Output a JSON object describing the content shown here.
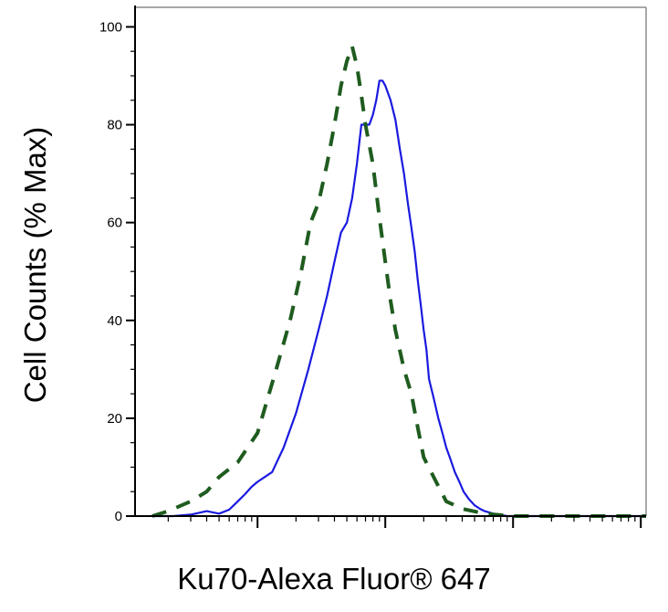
{
  "chart_data": {
    "type": "line",
    "title": "",
    "xlabel": "Ku70-Alexa Fluor® 647",
    "ylabel": "Cell Counts (% Max)",
    "xscale": "log",
    "xlim": [
      0.11,
      1100
    ],
    "ylim": [
      0,
      104
    ],
    "yticks": [
      0,
      20,
      40,
      60,
      80,
      100
    ],
    "ytick_labels": [
      "0",
      "20",
      "40",
      "60",
      "80",
      "100"
    ],
    "grid": false,
    "legend": "none",
    "series": [
      {
        "color": "#1a1adf",
        "style": "solid",
        "x": [
          0.15,
          0.22,
          0.3,
          0.4,
          0.5,
          0.6,
          0.7,
          0.8,
          0.9,
          1.0,
          1.3,
          1.6,
          2.0,
          2.5,
          3.0,
          3.5,
          4.0,
          4.5,
          5.0,
          5.5,
          6.0,
          6.5,
          7.0,
          7.5,
          8.0,
          8.5,
          9.0,
          9.5,
          10,
          11,
          12,
          13,
          14,
          15,
          16,
          17,
          18,
          19,
          20,
          21,
          22,
          24,
          26,
          28,
          30,
          32,
          35,
          38,
          41,
          45,
          50,
          55,
          60,
          70,
          80,
          90,
          100,
          130,
          170,
          250,
          400,
          1100
        ],
        "y": [
          0,
          0,
          0.3,
          1,
          0.5,
          1.3,
          3,
          4.5,
          6,
          7,
          9,
          14,
          21,
          30,
          38,
          45,
          52,
          58,
          60,
          65,
          72,
          80,
          80,
          80,
          82,
          85,
          89,
          89,
          88,
          85,
          81,
          75,
          70,
          64,
          59,
          54,
          48,
          43,
          38,
          34,
          28,
          24,
          20,
          17,
          14,
          12,
          9,
          7,
          5,
          3.5,
          2.2,
          1.5,
          1,
          0.5,
          0.2,
          0,
          0,
          0,
          0,
          0,
          0,
          0
        ]
      },
      {
        "color": "#1f5c1f",
        "style": "dashed",
        "x": [
          0.15,
          0.2,
          0.3,
          0.4,
          0.5,
          0.7,
          1.0,
          1.4,
          1.8,
          2.2,
          2.6,
          3.0,
          3.5,
          4.0,
          4.5,
          5.0,
          5.5,
          6.0,
          6.5,
          7.0,
          8.0,
          9.0,
          10,
          11,
          12,
          14,
          16,
          18,
          20,
          25,
          30,
          40,
          60,
          100,
          300,
          1100
        ],
        "y": [
          0,
          1,
          3,
          5,
          8,
          11,
          17,
          30,
          40,
          50,
          60,
          64,
          72,
          80,
          88,
          93,
          96,
          92,
          86,
          80,
          72,
          61,
          52,
          44,
          38,
          30,
          25,
          18,
          12,
          7,
          3,
          1.5,
          0.5,
          0,
          0,
          0
        ]
      }
    ]
  }
}
